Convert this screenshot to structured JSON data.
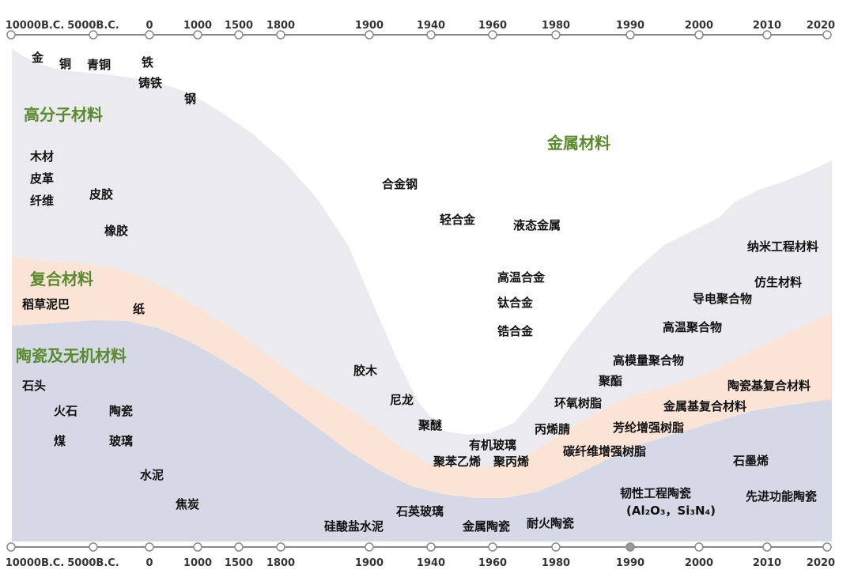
{
  "timeline": {
    "ticks": [
      "10000B.C.",
      "5000B.C.",
      "0",
      "1000",
      "1500",
      "1800",
      "1900",
      "1940",
      "1960",
      "1980",
      "1990",
      "2000",
      "2010",
      "2020"
    ]
  },
  "regions": {
    "polymer": "高分子材料",
    "composite": "复合材料",
    "ceramic": "陶瓷及无机材料",
    "metal": "金属材料"
  },
  "items": {
    "gold": "金",
    "copper": "铜",
    "bronze": "青铜",
    "iron": "铁",
    "cast_iron": "铸铁",
    "steel": "钢",
    "wood": "木材",
    "leather": "皮革",
    "fiber": "纤维",
    "rubber_hide": "皮胶",
    "rubber": "橡胶",
    "straw_mud": "稻草泥巴",
    "paper": "纸",
    "stone": "石头",
    "flint": "火石",
    "pottery": "陶瓷",
    "coal": "煤",
    "glass": "玻璃",
    "cement": "水泥",
    "coke": "焦炭",
    "alloy_steel": "合金钢",
    "light_alloy": "轻合金",
    "liquid_metal": "液态金属",
    "superalloy": "高温合金",
    "titanium_alloy": "钛合金",
    "zirconium_alloy": "锆合金",
    "bakelite": "胶木",
    "nylon": "尼龙",
    "polyether": "聚醚",
    "plexiglass": "有机玻璃",
    "polystyrene": "聚苯乙烯",
    "polypropylene": "聚丙烯",
    "acrylonitrile": "丙烯腈",
    "epoxy": "环氧树脂",
    "polyester": "聚酯",
    "high_modulus_polymer": "高模量聚合物",
    "high_temp_polymer": "高温聚合物",
    "conductive_polymer": "导电聚合物",
    "biomimetic": "仿生材料",
    "nano_eng": "纳米工程材料",
    "ceramic_matrix": "陶瓷基复合材料",
    "metal_matrix": "金属基复合材料",
    "aramid_resin": "芳纶增强树脂",
    "carbon_fiber_resin": "碳纤维增强树脂",
    "graphene": "石墨烯",
    "tough_ceramic": "韧性工程陶瓷",
    "tough_ceramic_formula": "(Al₂O₃，Si₃N₄)",
    "functional_ceramic": "先进功能陶瓷",
    "silicate_cement": "硅酸盐水泥",
    "quartz_glass": "石英玻璃",
    "metal_ceramic": "金属陶瓷",
    "refractory_ceramic": "耐火陶瓷"
  },
  "colors": {
    "metal": "#ffffff",
    "polymer": "#ebebef",
    "composite": "#fbe4d6",
    "ceramic": "#d5d9e6",
    "region_label": "#5a8a2e",
    "axis": "#888888"
  }
}
